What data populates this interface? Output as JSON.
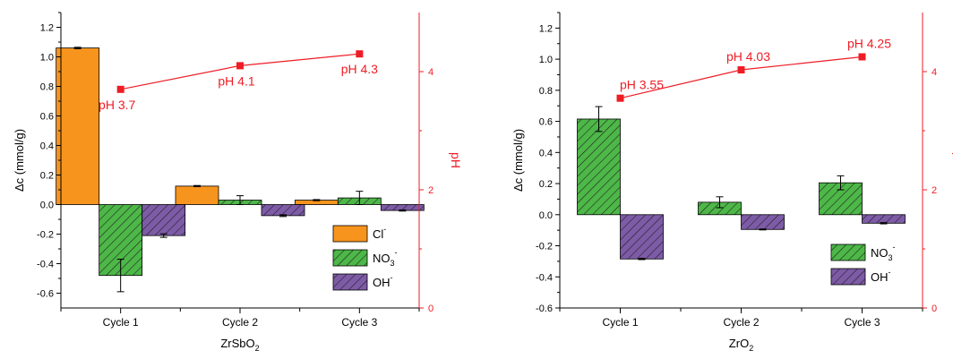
{
  "colors": {
    "cl": "#f7941d",
    "no3": "#4db748",
    "oh": "#7d5ba6",
    "ph_line": "#ee1c25",
    "axis": "#000000"
  },
  "chart_data": [
    {
      "type": "bar",
      "xlabel": "ZrSbO",
      "xlabel_sub": "2",
      "ylabel": "Δc (mmol/g)",
      "y2label": "pH",
      "categories": [
        "Cycle 1",
        "Cycle 2",
        "Cycle 3"
      ],
      "ylim": [
        -0.7,
        1.3
      ],
      "yticks": [
        "-0.6",
        "-0.4",
        "-0.2",
        "0.0",
        "0.2",
        "0.4",
        "0.6",
        "0.8",
        "1.0",
        "1.2"
      ],
      "y2lim": [
        0,
        5
      ],
      "y2ticks": [
        "0",
        "2",
        "4"
      ],
      "series": [
        {
          "key": "cl",
          "legend_main": "Cl",
          "legend_sup": "-",
          "legend_sub": "",
          "values": [
            1.06,
            0.125,
            0.03
          ],
          "errors": [
            0.005,
            0.004,
            0.004
          ],
          "hatch": false
        },
        {
          "key": "no3",
          "legend_main": "NO",
          "legend_sup": "-",
          "legend_sub": "3",
          "values": [
            -0.48,
            0.03,
            0.045
          ],
          "errors": [
            0.11,
            0.03,
            0.045
          ],
          "hatch": true
        },
        {
          "key": "oh",
          "legend_main": "OH",
          "legend_sup": "-",
          "legend_sub": "",
          "values": [
            -0.21,
            -0.075,
            -0.04
          ],
          "errors": [
            0.012,
            0.006,
            0.004
          ],
          "hatch": true
        }
      ],
      "ph": {
        "values": [
          3.7,
          4.1,
          4.3
        ],
        "labels": [
          "pH 3.7",
          "pH 4.1",
          "pH 4.3"
        ]
      },
      "legend_position": "bottom-right"
    },
    {
      "type": "bar",
      "xlabel": "ZrO",
      "xlabel_sub": "2",
      "ylabel": "Δc (mmol/g)",
      "y2label": "pH",
      "categories": [
        "Cycle 1",
        "Cycle 2",
        "Cycle 3"
      ],
      "ylim": [
        -0.6,
        1.3
      ],
      "yticks": [
        "-0.6",
        "-0.4",
        "-0.2",
        "0.0",
        "0.2",
        "0.4",
        "0.6",
        "0.8",
        "1.0",
        "1.2"
      ],
      "y2lim": [
        0,
        5
      ],
      "y2ticks": [
        "0",
        "2",
        "4"
      ],
      "series": [
        {
          "key": "no3",
          "legend_main": "NO",
          "legend_sup": "-",
          "legend_sub": "3",
          "values": [
            0.615,
            0.08,
            0.205
          ],
          "errors": [
            0.08,
            0.035,
            0.045
          ],
          "hatch": true
        },
        {
          "key": "oh",
          "legend_main": "OH",
          "legend_sup": "-",
          "legend_sub": "",
          "values": [
            -0.285,
            -0.095,
            -0.055
          ],
          "errors": [
            0.004,
            0.003,
            0.004
          ],
          "hatch": true
        }
      ],
      "ph": {
        "values": [
          3.55,
          4.03,
          4.25
        ],
        "labels": [
          "pH 3.55",
          "pH 4.03",
          "pH 4.25"
        ]
      },
      "legend_position": "bottom-right"
    }
  ]
}
